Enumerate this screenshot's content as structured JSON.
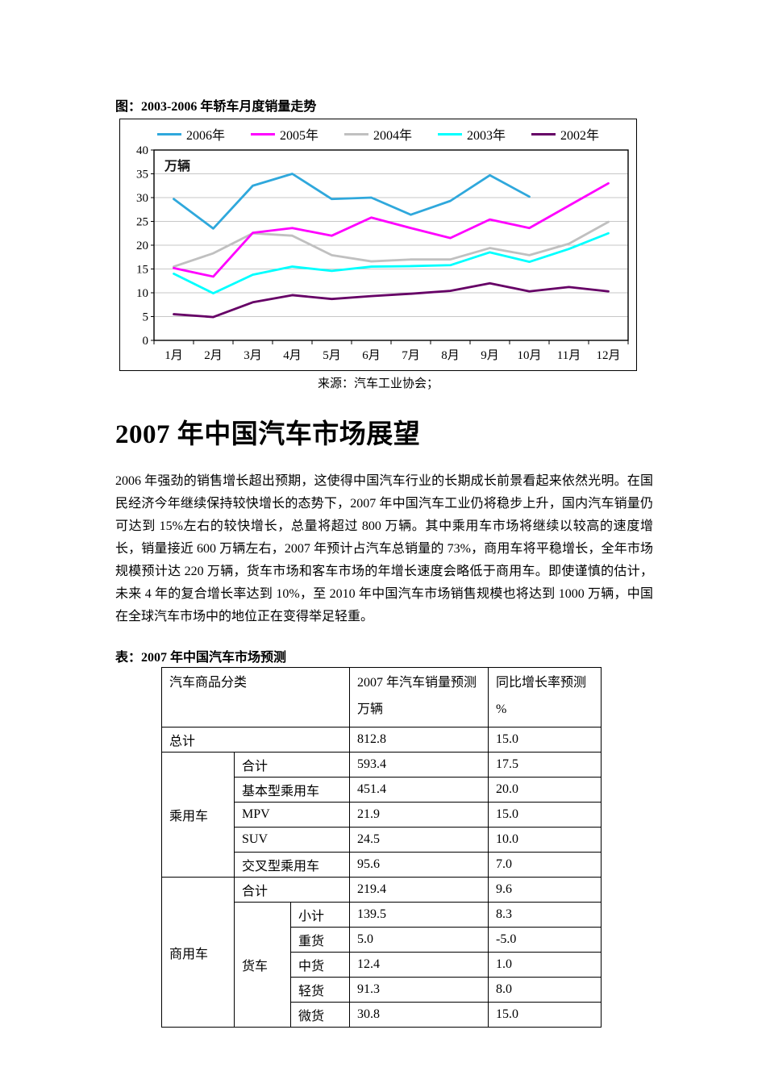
{
  "figure": {
    "title": "图：2003-2006 年轿车月度销量走势",
    "source": "来源：汽车工业协会；"
  },
  "chart_data": {
    "type": "line",
    "title": "图：2003-2006 年轿车月度销量走势",
    "ylabel": "万辆",
    "xlabel": "",
    "ylim": [
      0,
      40
    ],
    "y_tick_step": 5,
    "y_ticks": [
      0,
      5,
      10,
      15,
      20,
      25,
      30,
      35,
      40
    ],
    "grid": true,
    "legend_position": "top",
    "categories": [
      "1月",
      "2月",
      "3月",
      "4月",
      "5月",
      "6月",
      "7月",
      "8月",
      "9月",
      "10月",
      "11月",
      "12月"
    ],
    "series": [
      {
        "name": "2006年",
        "color": "#2FA8DC",
        "values": [
          29.7,
          23.5,
          32.5,
          35.0,
          29.7,
          30.0,
          26.4,
          29.3,
          34.7,
          30.2,
          null,
          null
        ]
      },
      {
        "name": "2005年",
        "color": "#FF00FF",
        "values": [
          15.2,
          13.4,
          22.6,
          23.6,
          22.0,
          25.8,
          23.6,
          21.5,
          25.4,
          23.6,
          28.3,
          33.0
        ]
      },
      {
        "name": "2004年",
        "color": "#C0C0C0",
        "values": [
          15.5,
          18.3,
          22.5,
          22.0,
          17.9,
          16.6,
          17.0,
          17.0,
          19.4,
          17.9,
          20.3,
          24.9
        ]
      },
      {
        "name": "2003年",
        "color": "#00FFFF",
        "values": [
          14.0,
          9.9,
          13.8,
          15.5,
          14.6,
          15.5,
          15.6,
          15.8,
          18.5,
          16.5,
          19.2,
          22.5
        ]
      },
      {
        "name": "2002年",
        "color": "#660066",
        "values": [
          5.5,
          4.9,
          8.0,
          9.5,
          8.7,
          9.3,
          9.8,
          10.4,
          12.0,
          10.3,
          11.2,
          10.3
        ]
      }
    ]
  },
  "article": {
    "heading": "2007 年中国汽车市场展望",
    "paragraph": "2006 年强劲的销售增长超出预期，这使得中国汽车行业的长期成长前景看起来依然光明。在国民经济今年继续保持较快增长的态势下，2007 年中国汽车工业仍将稳步上升，国内汽车销量仍可达到 15%左右的较快增长，总量将超过 800 万辆。其中乘用车市场将继续以较高的速度增长，销量接近 600 万辆左右，2007 年预计占汽车总销量的 73%，商用车将平稳增长，全年市场规模预计达 220 万辆，货车市场和客车市场的年增长速度会略低于商用车。即使谨慎的估计，未来 4 年的复合增长率达到 10%，至 2010 年中国汽车市场销售规模也将达到 1000 万辆，中国在全球汽车市场中的地位正在变得举足轻重。"
  },
  "forecast_table": {
    "title": "表：2007 年中国汽车市场预测",
    "header": {
      "category": "汽车商品分类",
      "sales_line1": "2007 年汽车销量预测",
      "sales_line2": "万辆",
      "growth_line1": "同比增长率预测",
      "growth_line2": "%"
    },
    "rows": {
      "total": {
        "label": "总计",
        "sales": "812.8",
        "growth": "15.0"
      },
      "pv_group": "乘用车",
      "pv_sum": {
        "label": "合计",
        "sales": "593.4",
        "growth": "17.5"
      },
      "basic": {
        "label": "基本型乘用车",
        "sales": "451.4",
        "growth": "20.0"
      },
      "mpv": {
        "label": "MPV",
        "sales": "21.9",
        "growth": "15.0"
      },
      "suv": {
        "label": "SUV",
        "sales": "24.5",
        "growth": "10.0"
      },
      "cross": {
        "label": "交叉型乘用车",
        "sales": "95.6",
        "growth": "7.0"
      },
      "cv_group": "商用车",
      "cv_sum": {
        "label": "合计",
        "sales": "219.4",
        "growth": "9.6"
      },
      "truck_group": "货车",
      "truck_sum": {
        "label": "小计",
        "sales": "139.5",
        "growth": "8.3"
      },
      "heavy": {
        "label": "重货",
        "sales": "5.0",
        "growth": "-5.0"
      },
      "medium": {
        "label": "中货",
        "sales": "12.4",
        "growth": "1.0"
      },
      "light": {
        "label": "轻货",
        "sales": "91.3",
        "growth": "8.0"
      },
      "mini": {
        "label": "微货",
        "sales": "30.8",
        "growth": "15.0"
      }
    }
  }
}
